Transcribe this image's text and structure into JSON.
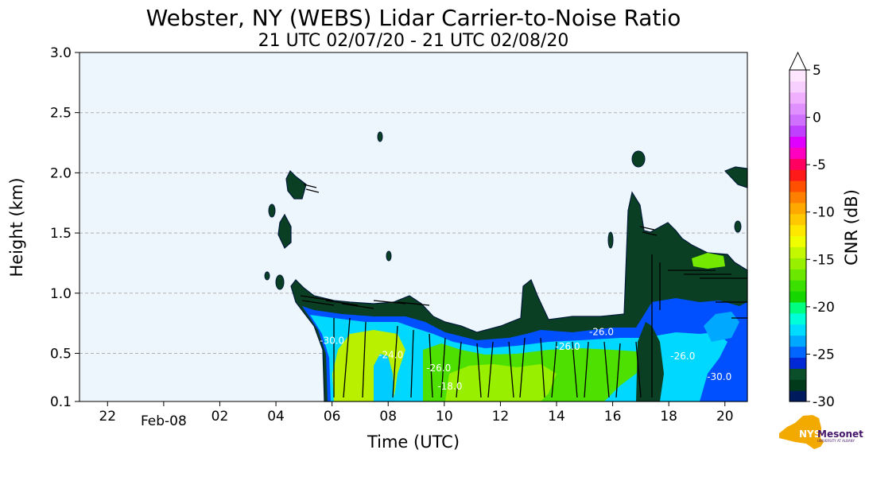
{
  "chart_data": {
    "type": "heatmap",
    "title": "Webster, NY (WEBS) Lidar Carrier-to-Noise Ratio",
    "subtitle": "21 UTC 02/07/20 - 21 UTC 02/08/20",
    "xlabel": "Time (UTC)",
    "ylabel": "Height (km)",
    "x_ticks": [
      {
        "label": "22",
        "hour": 22
      },
      {
        "label": "Feb-08",
        "hour": 24
      },
      {
        "label": "02",
        "hour": 26
      },
      {
        "label": "04",
        "hour": 28
      },
      {
        "label": "06",
        "hour": 30
      },
      {
        "label": "08",
        "hour": 32
      },
      {
        "label": "10",
        "hour": 34
      },
      {
        "label": "12",
        "hour": 36
      },
      {
        "label": "14",
        "hour": 38
      },
      {
        "label": "16",
        "hour": 40
      },
      {
        "label": "18",
        "hour": 42
      },
      {
        "label": "20",
        "hour": 44
      }
    ],
    "xlim_hours": [
      21,
      44.8
    ],
    "y_ticks": [
      {
        "label": "0.1",
        "value": 0.1
      },
      {
        "label": "0.5",
        "value": 0.5
      },
      {
        "label": "1.0",
        "value": 1.0
      },
      {
        "label": "1.5",
        "value": 1.5
      },
      {
        "label": "2.0",
        "value": 2.0
      },
      {
        "label": "2.5",
        "value": 2.5
      },
      {
        "label": "3.0",
        "value": 3.0
      }
    ],
    "ylim": [
      0.1,
      3.0
    ],
    "grid": "horizontal dashed",
    "background_color": "#eef6fd",
    "colorbar": {
      "label": "CNR (dB)",
      "ticks": [
        {
          "label": "5",
          "value": 5
        },
        {
          "label": "0",
          "value": 0
        },
        {
          "label": "-5",
          "value": -5
        },
        {
          "label": "-10",
          "value": -10
        },
        {
          "label": "-15",
          "value": -15
        },
        {
          "label": "-20",
          "value": -20
        },
        {
          "label": "-25",
          "value": -25
        },
        {
          "label": "-30",
          "value": -30
        }
      ],
      "range": [
        -30,
        5
      ],
      "extend": "max",
      "colors": [
        "#001a5e",
        "#003a1a",
        "#0a4f2a",
        "#0029d6",
        "#0066ff",
        "#00a8ff",
        "#00dcff",
        "#00ffd8",
        "#00ff80",
        "#16d600",
        "#3ce000",
        "#6ce800",
        "#98f000",
        "#c4f800",
        "#f0ff00",
        "#ffe800",
        "#ffc800",
        "#ffa800",
        "#ff8000",
        "#ff5000",
        "#ff1a1a",
        "#ff0060",
        "#ff00c0",
        "#e000ff",
        "#c040ff",
        "#d070ff",
        "#e090ff",
        "#f0b0ff",
        "#f8d0ff",
        "#ffe6ff"
      ]
    },
    "contour_labels": [
      {
        "text": "-30.0",
        "hour": 30.0,
        "height": 0.58
      },
      {
        "text": "-24.0",
        "hour": 32.1,
        "height": 0.46
      },
      {
        "text": "-26.0",
        "hour": 33.8,
        "height": 0.35
      },
      {
        "text": "-18.0",
        "hour": 34.2,
        "height": 0.2
      },
      {
        "text": "-26.0",
        "hour": 38.4,
        "height": 0.53
      },
      {
        "text": "-26.0",
        "hour": 39.6,
        "height": 0.65
      },
      {
        "text": "-26.0",
        "hour": 42.5,
        "height": 0.45
      },
      {
        "text": "-30.0",
        "hour": 43.8,
        "height": 0.28
      }
    ]
  },
  "logo": {
    "text": "Mesonet",
    "prefix": "NYS",
    "sub": "UNIVERSITY AT ALBANY",
    "map_color": "#f2a900",
    "text_color": "#46166b"
  }
}
